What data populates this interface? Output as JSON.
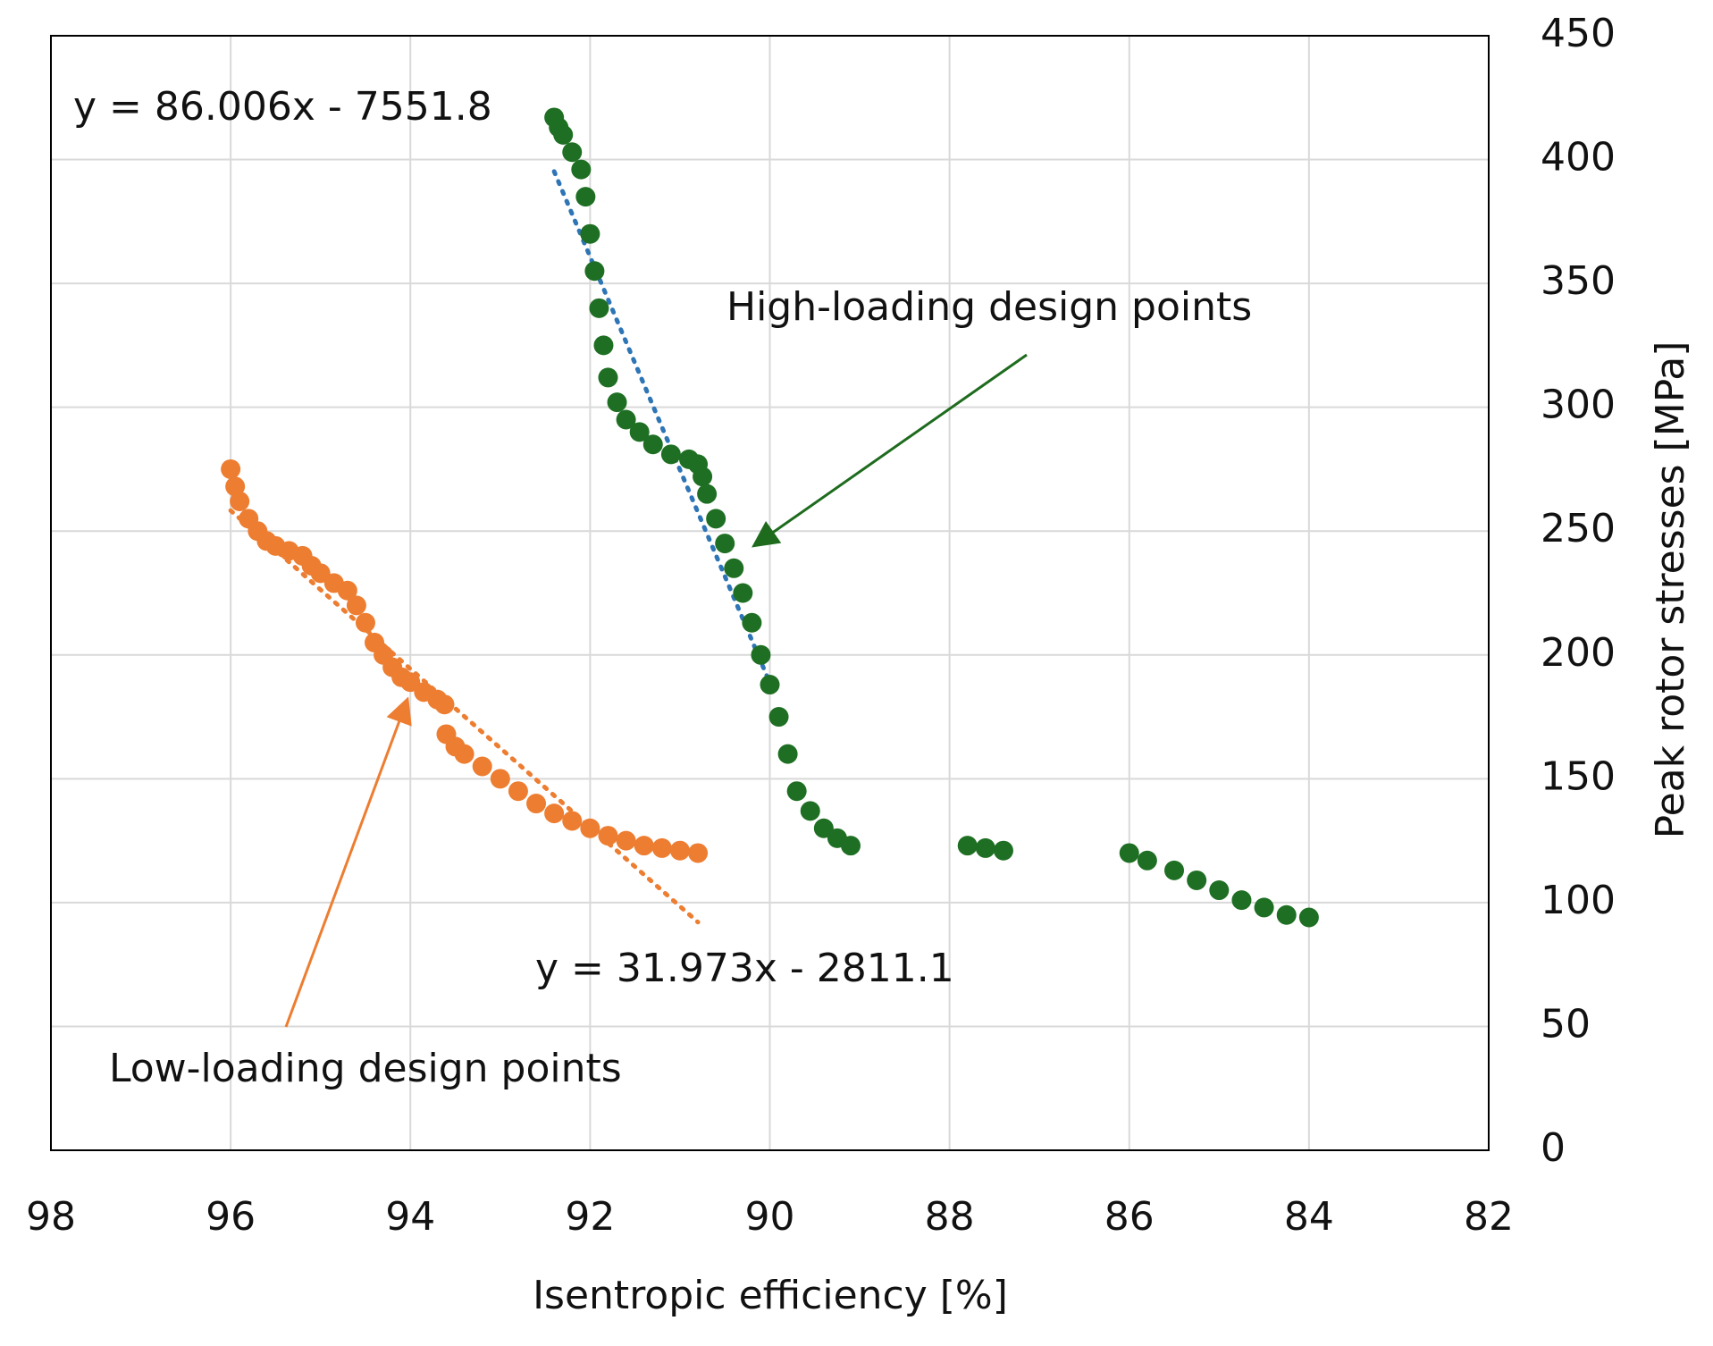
{
  "chart_data": {
    "type": "scatter",
    "x_label": "Isentropic efficiency [%]",
    "y_label": "Peak rotor stresses [MPa]",
    "xlim": [
      98,
      82
    ],
    "ylim": [
      0,
      450
    ],
    "xticks": [
      98,
      96,
      94,
      92,
      90,
      88,
      86,
      84,
      82
    ],
    "yticks": [
      0,
      50,
      100,
      150,
      200,
      250,
      300,
      350,
      400,
      450
    ],
    "grid": true,
    "y_axis_side": "right",
    "series": [
      {
        "name": "Low-loading design points",
        "color": "#ed7d31",
        "x": [
          96.0,
          95.95,
          95.9,
          95.8,
          95.7,
          95.6,
          95.5,
          95.35,
          95.2,
          95.1,
          95.0,
          94.85,
          94.7,
          94.6,
          94.5,
          94.4,
          94.3,
          94.2,
          94.1,
          94.0,
          93.85,
          93.7,
          93.62,
          93.6,
          93.5,
          93.4,
          93.2,
          93.0,
          92.8,
          92.6,
          92.4,
          92.2,
          92.0,
          91.8,
          91.6,
          91.4,
          91.2,
          91.0,
          90.8
        ],
        "values": [
          275,
          268,
          262,
          255,
          250,
          246,
          244,
          242,
          240,
          236,
          233,
          229,
          226,
          220,
          213,
          205,
          200,
          195,
          191,
          189,
          185,
          182,
          180,
          168,
          163,
          160,
          155,
          150,
          145,
          140,
          136,
          133,
          130,
          127,
          125,
          123,
          122,
          121,
          120
        ]
      },
      {
        "name": "High-loading design points",
        "color": "#1e6f23",
        "x": [
          92.4,
          92.35,
          92.3,
          92.2,
          92.1,
          92.05,
          92.0,
          91.95,
          91.9,
          91.85,
          91.8,
          91.7,
          91.6,
          91.45,
          91.3,
          91.1,
          90.9,
          90.8,
          90.75,
          90.7,
          90.6,
          90.5,
          90.4,
          90.3,
          90.2,
          90.1,
          90.0,
          89.9,
          89.8,
          89.7,
          89.55,
          89.4,
          89.25,
          89.1,
          87.8,
          87.6,
          87.4,
          86.0,
          85.8,
          85.5,
          85.25,
          85.0,
          84.75,
          84.5,
          84.25,
          84.0
        ],
        "values": [
          417,
          413,
          410,
          403,
          396,
          385,
          370,
          355,
          340,
          325,
          312,
          302,
          295,
          290,
          285,
          281,
          279,
          277,
          272,
          265,
          255,
          245,
          235,
          225,
          213,
          200,
          188,
          175,
          160,
          145,
          137,
          130,
          126,
          123,
          123,
          122,
          121,
          120,
          117,
          113,
          109,
          105,
          101,
          98,
          95,
          94
        ]
      }
    ],
    "trendlines": [
      {
        "series": 0,
        "equation": "y = 31.973x - 2811.1",
        "color": "#ed7d31",
        "x": [
          96.0,
          90.8
        ],
        "values": [
          258.3,
          92.1
        ]
      },
      {
        "series": 1,
        "equation": "y = 86.006x - 7551.8",
        "color": "#2e75b6",
        "x": [
          92.4,
          90.0
        ],
        "values": [
          395.2,
          188.7
        ]
      }
    ]
  }
}
